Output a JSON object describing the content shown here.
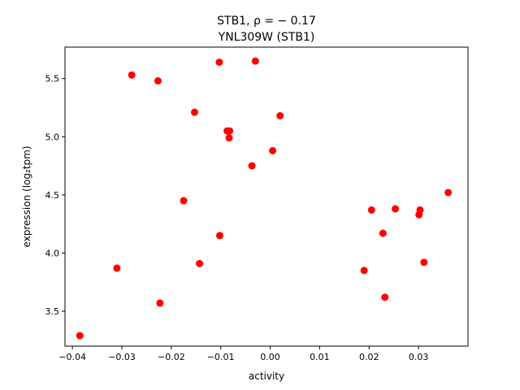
{
  "chart_data": {
    "type": "scatter",
    "title_line1": "STB1, ρ = − 0.17",
    "title_line2": "YNL309W (STB1)",
    "xlabel": "activity",
    "ylabel": "expression (log₂tpm)",
    "xlim": [
      -0.0415,
      0.04
    ],
    "ylim": [
      3.2,
      5.77
    ],
    "xticks": [
      -0.04,
      -0.03,
      -0.02,
      -0.01,
      0.0,
      0.01,
      0.02,
      0.03
    ],
    "xtick_labels": [
      "−0.04",
      "−0.03",
      "−0.02",
      "−0.01",
      "0.00",
      "0.01",
      "0.02",
      "0.03"
    ],
    "yticks": [
      3.5,
      4.0,
      4.5,
      5.0,
      5.5
    ],
    "ytick_labels": [
      "3.5",
      "4.0",
      "4.5",
      "5.0",
      "5.5"
    ],
    "grid": false,
    "marker_color": "#ff0000",
    "points": [
      {
        "x": -0.0385,
        "y": 3.29
      },
      {
        "x": -0.031,
        "y": 3.87
      },
      {
        "x": -0.028,
        "y": 5.53
      },
      {
        "x": -0.0227,
        "y": 5.48
      },
      {
        "x": -0.0223,
        "y": 3.57
      },
      {
        "x": -0.0175,
        "y": 4.45
      },
      {
        "x": -0.0153,
        "y": 5.21
      },
      {
        "x": -0.0143,
        "y": 3.91
      },
      {
        "x": -0.0103,
        "y": 5.64
      },
      {
        "x": -0.0102,
        "y": 4.15
      },
      {
        "x": -0.0087,
        "y": 5.05
      },
      {
        "x": -0.0082,
        "y": 5.05
      },
      {
        "x": -0.0083,
        "y": 4.99
      },
      {
        "x": -0.0037,
        "y": 4.75
      },
      {
        "x": -0.003,
        "y": 5.65
      },
      {
        "x": 0.0005,
        "y": 4.88
      },
      {
        "x": 0.002,
        "y": 5.18
      },
      {
        "x": 0.019,
        "y": 3.85
      },
      {
        "x": 0.0205,
        "y": 4.37
      },
      {
        "x": 0.0228,
        "y": 4.17
      },
      {
        "x": 0.0232,
        "y": 3.62
      },
      {
        "x": 0.0253,
        "y": 4.38
      },
      {
        "x": 0.0301,
        "y": 4.33
      },
      {
        "x": 0.0303,
        "y": 4.37
      },
      {
        "x": 0.0311,
        "y": 3.92
      },
      {
        "x": 0.036,
        "y": 4.52
      }
    ]
  }
}
